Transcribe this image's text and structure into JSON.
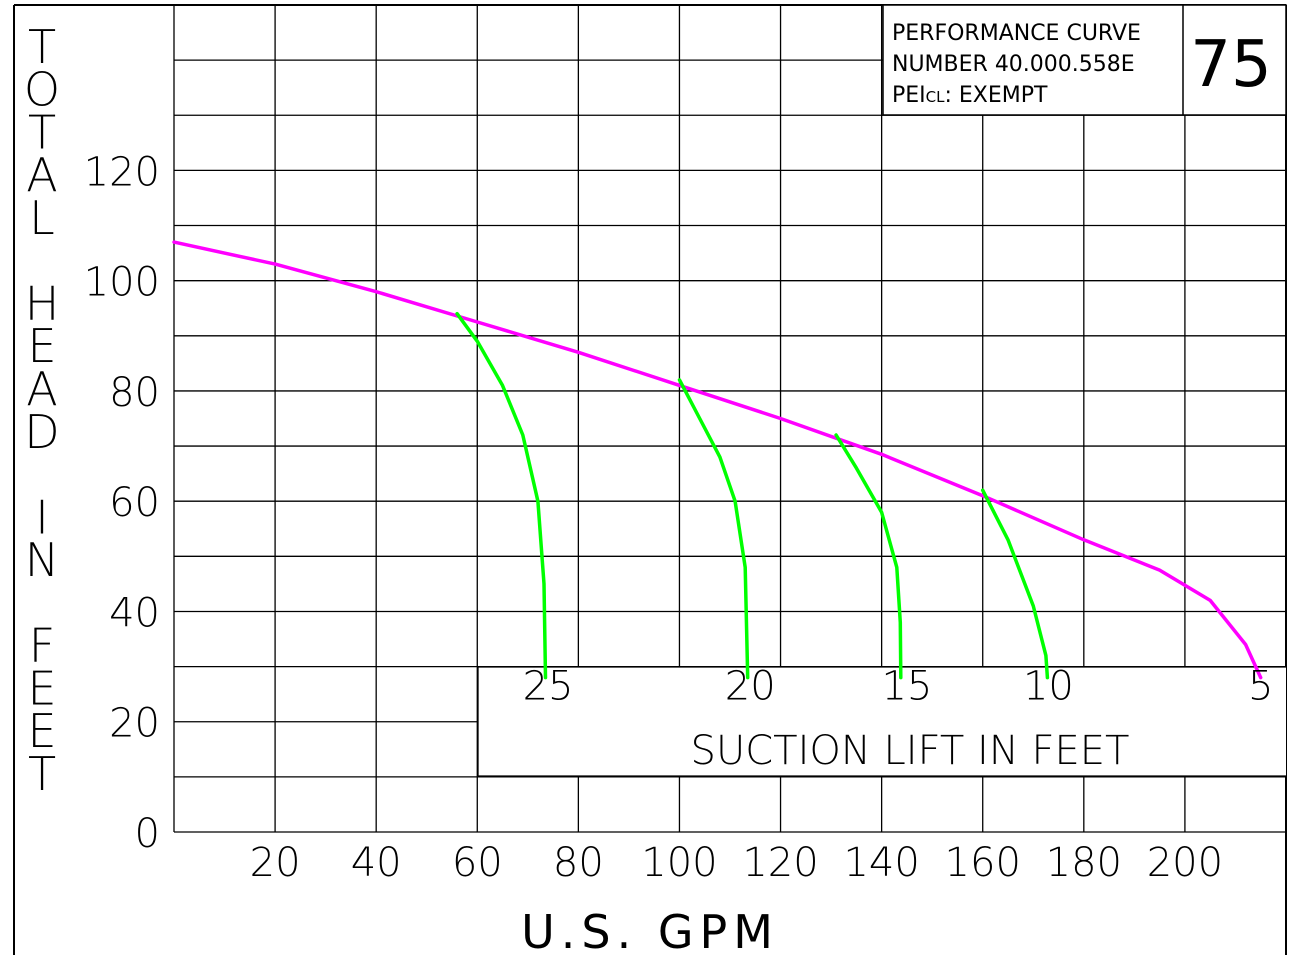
{
  "chart_data": {
    "type": "line",
    "title": "",
    "ylabel": "TOTAL HEAD IN FEET",
    "xlabel": "U.S. GPM",
    "xlim": [
      0,
      220
    ],
    "ylim": [
      0,
      140
    ],
    "x_ticks": [
      "20",
      "40",
      "60",
      "80",
      "100",
      "120",
      "140",
      "160",
      "180",
      "200"
    ],
    "y_ticks": [
      "0",
      "20",
      "40",
      "60",
      "80",
      "100",
      "120"
    ],
    "grid": true,
    "info_box": {
      "line1": "PERFORMANCE CURVE",
      "line2": "NUMBER 40.000.558E",
      "line3_prefix": "PEI",
      "line3_sub": "CL",
      "line3_rest": ":  EXEMPT",
      "model": "75"
    },
    "suction_lift_title": "SUCTION  LIFT  IN  FEET",
    "series": [
      {
        "role": "performance",
        "color": "#ff00ff",
        "points": [
          [
            0,
            107
          ],
          [
            20,
            103
          ],
          [
            40,
            98
          ],
          [
            60,
            92.5
          ],
          [
            80,
            87
          ],
          [
            100,
            81
          ],
          [
            120,
            75
          ],
          [
            140,
            68.5
          ],
          [
            160,
            61
          ],
          [
            180,
            53
          ],
          [
            195,
            47.5
          ],
          [
            205,
            42
          ],
          [
            212,
            34
          ],
          [
            215,
            28
          ]
        ]
      },
      {
        "name": "25",
        "color": "#00ff00",
        "points": [
          [
            56,
            94
          ],
          [
            60,
            89
          ],
          [
            65,
            81
          ],
          [
            69,
            72
          ],
          [
            72,
            60
          ],
          [
            73.2,
            45
          ],
          [
            73.5,
            28
          ]
        ],
        "label_x": 74,
        "label_y": 24
      },
      {
        "name": "20",
        "color": "#00ff00",
        "points": [
          [
            100,
            82
          ],
          [
            104,
            75
          ],
          [
            108,
            68
          ],
          [
            111,
            60
          ],
          [
            113,
            48
          ],
          [
            113.5,
            28
          ]
        ],
        "label_x": 114,
        "label_y": 24
      },
      {
        "name": "15",
        "color": "#00ff00",
        "points": [
          [
            131,
            72
          ],
          [
            135,
            66
          ],
          [
            140,
            58
          ],
          [
            143,
            48
          ],
          [
            143.7,
            38
          ],
          [
            143.8,
            28
          ]
        ],
        "label_x": 145,
        "label_y": 24
      },
      {
        "name": "10",
        "color": "#00ff00",
        "points": [
          [
            160,
            62
          ],
          [
            165,
            53
          ],
          [
            170,
            41
          ],
          [
            172.5,
            32
          ],
          [
            172.8,
            28
          ]
        ],
        "label_x": 173,
        "label_y": 24
      },
      {
        "name": "5",
        "color": "#ff00ff",
        "points": [],
        "label_x": 215,
        "label_y": 24
      }
    ]
  }
}
